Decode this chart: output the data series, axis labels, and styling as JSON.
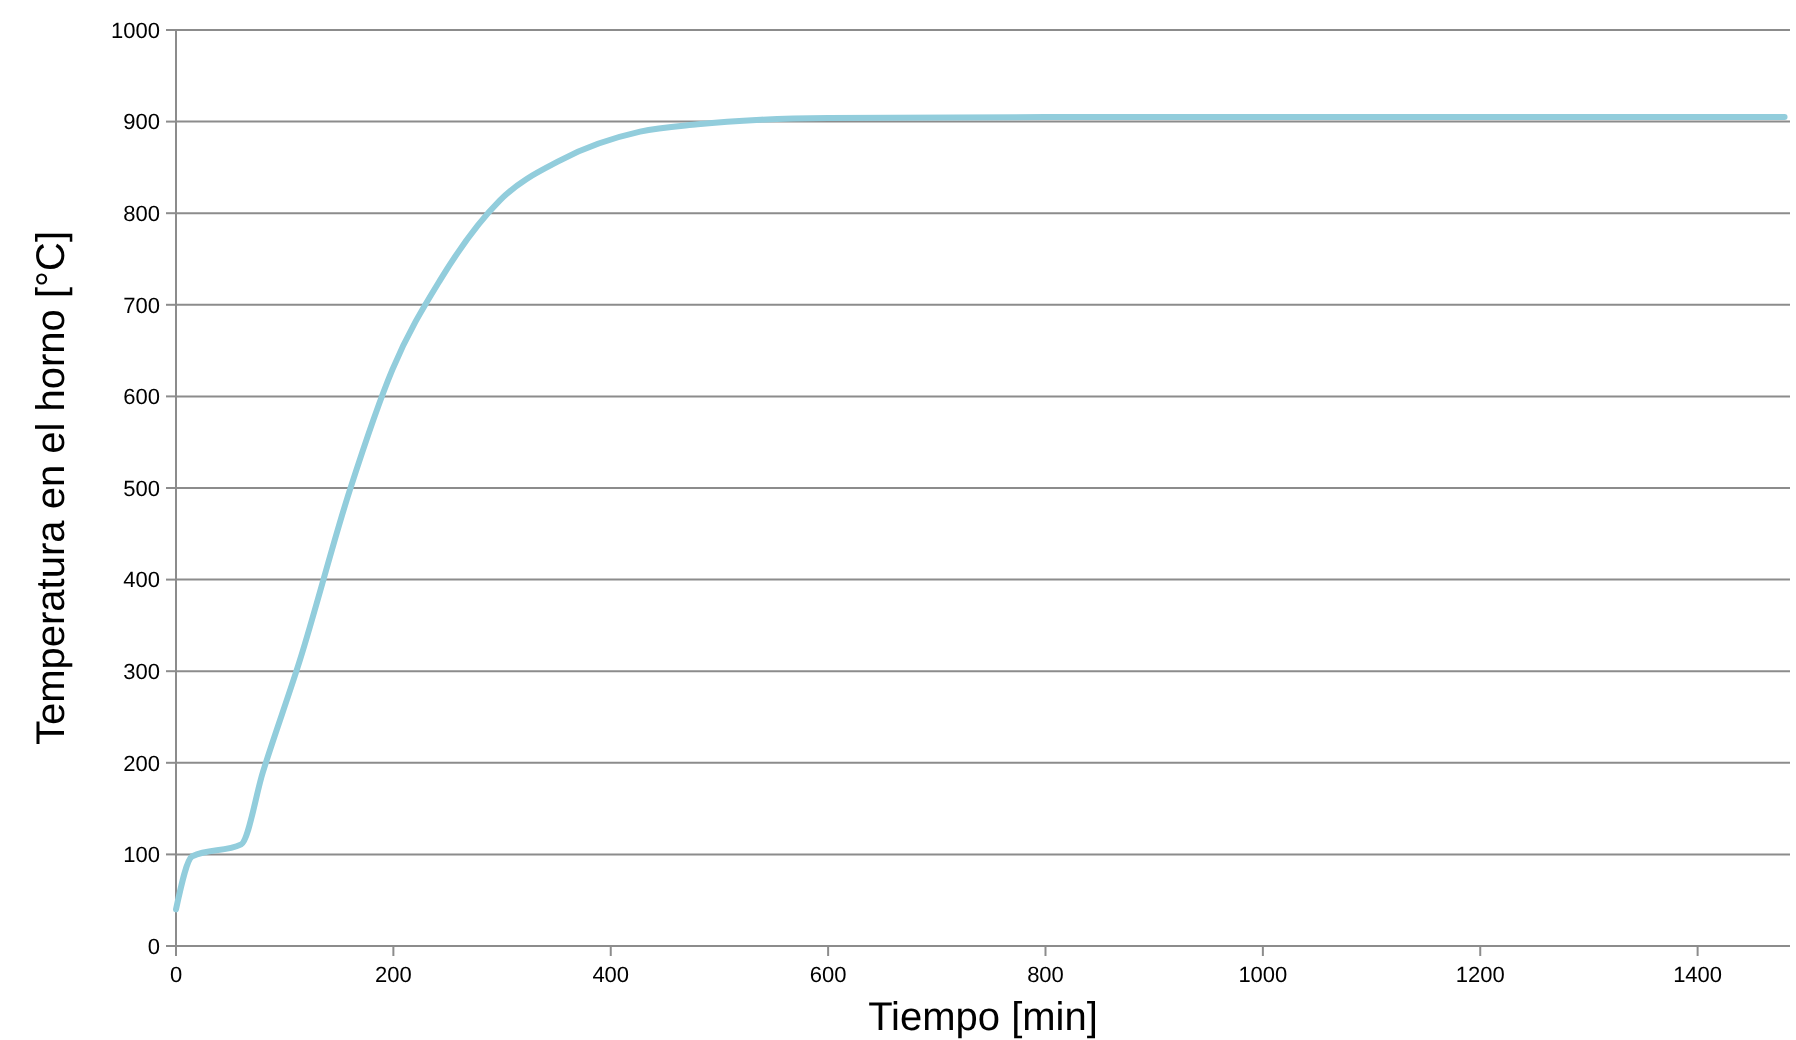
{
  "chart_data": {
    "type": "line",
    "xlabel": "Tiempo [min]",
    "ylabel": "Temperatura en el horno [°C]",
    "xlim": [
      0,
      1485
    ],
    "xticks": [
      0,
      200,
      400,
      600,
      800,
      1000,
      1200,
      1400
    ],
    "ylim": [
      0,
      1000
    ],
    "yticks": [
      0,
      100,
      200,
      300,
      400,
      500,
      600,
      700,
      800,
      900,
      1000
    ],
    "grid": "y",
    "series": [
      {
        "color": "#92cddc",
        "x": [
          0,
          15,
          60,
          80,
          114,
          160,
          199,
          243,
          298,
          354,
          427,
          480,
          538,
          600,
          800,
          1000,
          1200,
          1480
        ],
        "values": [
          40,
          98,
          111,
          190,
          312,
          498,
          629,
          727,
          814,
          858,
          889,
          897,
          902,
          904,
          905,
          905,
          905,
          905
        ]
      }
    ]
  }
}
